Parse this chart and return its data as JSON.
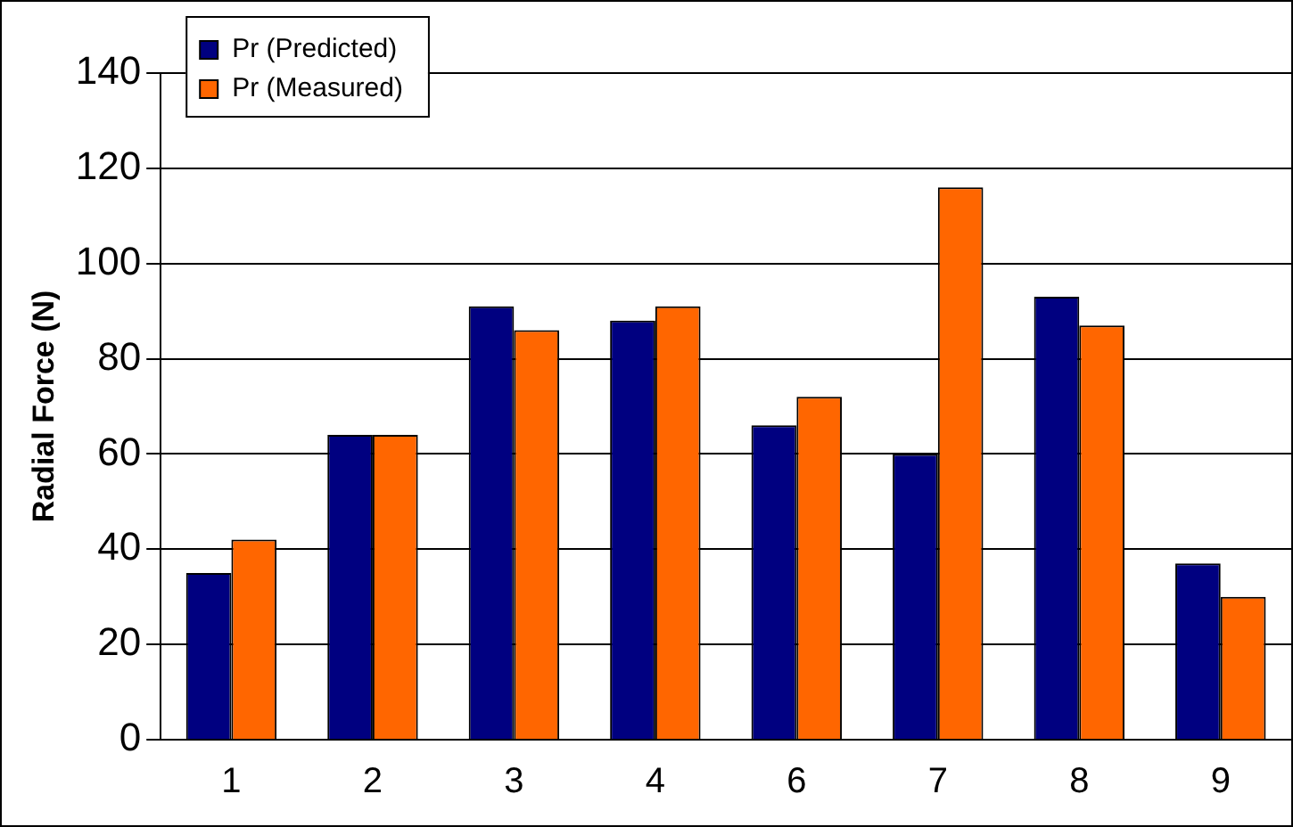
{
  "chart_data": {
    "type": "bar",
    "ylabel": "Radial Force (N)",
    "categories": [
      "1",
      "2",
      "3",
      "4",
      "6",
      "7",
      "8",
      "9"
    ],
    "series": [
      {
        "name": "Pr (Predicted)",
        "color": "#000080",
        "values": [
          35,
          64,
          91,
          88,
          66,
          60,
          93,
          37
        ]
      },
      {
        "name": "Pr (Measured)",
        "color": "#ff6600",
        "values": [
          42,
          64,
          86,
          91,
          72,
          116,
          87,
          30
        ]
      }
    ],
    "ylim": [
      0,
      140
    ],
    "yticks": [
      0,
      20,
      40,
      60,
      80,
      100,
      120,
      140
    ],
    "grid": "y",
    "legend": "top left"
  }
}
